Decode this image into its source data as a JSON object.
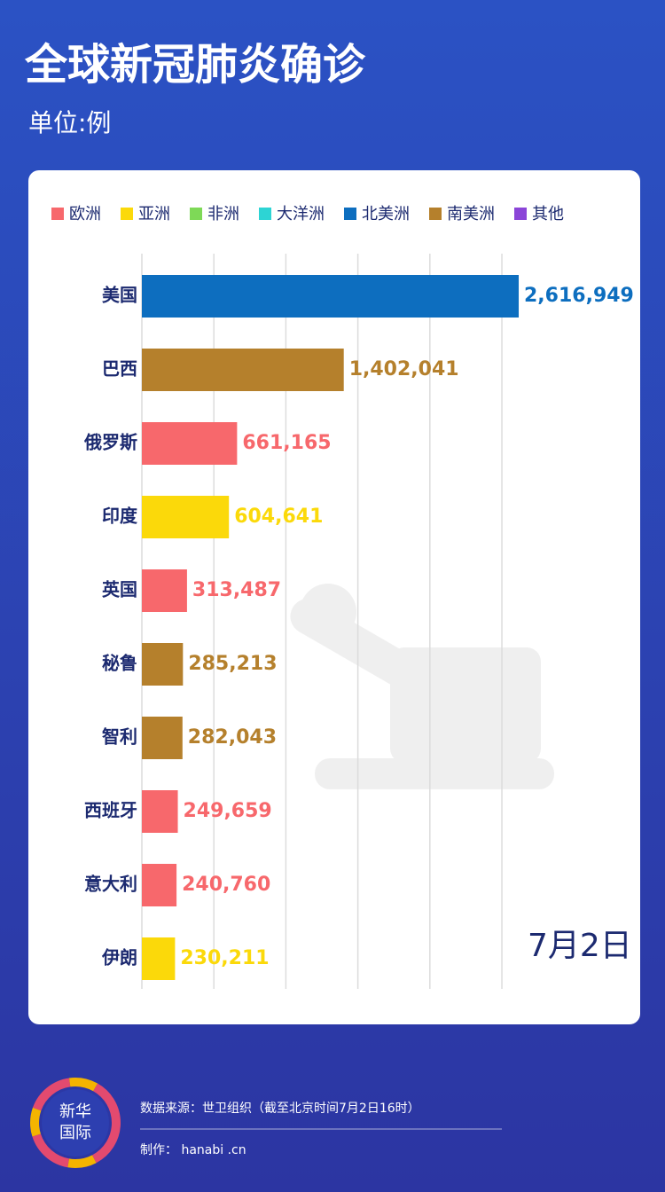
{
  "chart_data": {
    "type": "bar",
    "orientation": "horizontal",
    "title": "全球新冠肺炎确诊",
    "subtitle": "单位:例",
    "annotation": "7月2日",
    "categories": [
      "美国",
      "巴西",
      "俄罗斯",
      "印度",
      "英国",
      "秘鲁",
      "智利",
      "西班牙",
      "意大利",
      "伊朗"
    ],
    "series": [
      {
        "name": "欧洲",
        "color": "#f7686c",
        "values": [
          null,
          null,
          661165,
          null,
          313487,
          null,
          null,
          249659,
          240760,
          null
        ],
        "value_labels": [
          null,
          null,
          "661,165",
          null,
          "313,487",
          null,
          null,
          "249,659",
          "240,760",
          null
        ]
      },
      {
        "name": "亚洲",
        "color": "#fbd90a",
        "values": [
          null,
          null,
          null,
          604641,
          null,
          null,
          null,
          null,
          null,
          230211
        ],
        "value_labels": [
          null,
          null,
          null,
          "604,641",
          null,
          null,
          null,
          null,
          null,
          "230,211"
        ]
      },
      {
        "name": "非洲",
        "color": "#7ed957",
        "values": [
          null,
          null,
          null,
          null,
          null,
          null,
          null,
          null,
          null,
          null
        ],
        "value_labels": [
          null,
          null,
          null,
          null,
          null,
          null,
          null,
          null,
          null,
          null
        ]
      },
      {
        "name": "大洋洲",
        "color": "#2dd4d4",
        "values": [
          null,
          null,
          null,
          null,
          null,
          null,
          null,
          null,
          null,
          null
        ],
        "value_labels": [
          null,
          null,
          null,
          null,
          null,
          null,
          null,
          null,
          null,
          null
        ]
      },
      {
        "name": "北美洲",
        "color": "#0d6ebf",
        "values": [
          2616949,
          null,
          null,
          null,
          null,
          null,
          null,
          null,
          null,
          null
        ],
        "value_labels": [
          "2,616,949",
          null,
          null,
          null,
          null,
          null,
          null,
          null,
          null,
          null
        ]
      },
      {
        "name": "南美洲",
        "color": "#b5802c",
        "values": [
          null,
          1402041,
          null,
          null,
          null,
          285213,
          282043,
          null,
          null,
          null
        ],
        "value_labels": [
          null,
          "1,402,041",
          null,
          null,
          null,
          "285,213",
          "282,043",
          null,
          null,
          null
        ]
      },
      {
        "name": "其他",
        "color": "#8b45d8",
        "values": [
          null,
          null,
          null,
          null,
          null,
          null,
          null,
          null,
          null,
          null
        ],
        "value_labels": [
          null,
          null,
          null,
          null,
          null,
          null,
          null,
          null,
          null,
          null
        ]
      }
    ],
    "xlim": [
      0,
      2700000
    ],
    "xticks": [
      0,
      500000,
      1000000,
      1500000,
      2000000,
      2500000
    ],
    "grid": true
  },
  "footer": {
    "logo": [
      "新华",
      "国际"
    ],
    "source": "数据来源：世卫组织（截至北京时间7月2日16时）",
    "credit": "制作： hanabi .cn"
  }
}
